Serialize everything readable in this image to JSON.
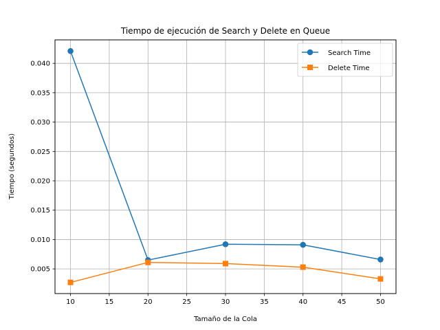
{
  "chart_data": {
    "type": "line",
    "title": "Tiempo de ejecución de Search y Delete en Queue",
    "xlabel": "Tamaño de la Cola",
    "ylabel": "Tiempo (segundos)",
    "x": [
      10,
      20,
      30,
      40,
      50
    ],
    "xlim": [
      8,
      52
    ],
    "ylim": [
      0.0008,
      0.044
    ],
    "xticks": [
      10,
      15,
      20,
      25,
      30,
      35,
      40,
      45,
      50
    ],
    "yticks": [
      "0.005",
      "0.010",
      "0.015",
      "0.020",
      "0.025",
      "0.030",
      "0.035",
      "0.040"
    ],
    "grid": true,
    "legend_position": "top-right",
    "series": [
      {
        "name": "Search Time",
        "values": [
          0.0421,
          0.0065,
          0.0092,
          0.0091,
          0.0066
        ],
        "color": "#1f77b4",
        "marker": "circle"
      },
      {
        "name": "Delete Time",
        "values": [
          0.0027,
          0.0061,
          0.0059,
          0.0053,
          0.0033
        ],
        "color": "#ff7f0e",
        "marker": "square"
      }
    ]
  }
}
